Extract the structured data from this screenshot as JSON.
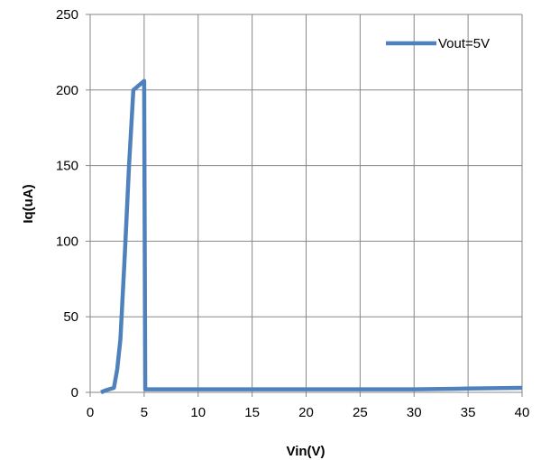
{
  "chart_data": {
    "type": "line",
    "title": "",
    "xlabel": "Vin(V)",
    "ylabel": "Iq(uA)",
    "xlim": [
      0,
      40
    ],
    "ylim": [
      0,
      250
    ],
    "xticks": [
      0,
      5,
      10,
      15,
      20,
      25,
      30,
      35,
      40
    ],
    "yticks": [
      0,
      50,
      100,
      150,
      200,
      250
    ],
    "grid": true,
    "legend_position": "top-right",
    "series": [
      {
        "name": "Vout=5V",
        "color": "#4F81BD",
        "x": [
          1.0,
          1.5,
          2.2,
          2.5,
          2.8,
          3.2,
          3.6,
          4.0,
          4.5,
          5.0,
          5.1,
          10,
          15,
          20,
          25,
          30,
          35,
          40
        ],
        "y": [
          0,
          1.5,
          3,
          15,
          35,
          90,
          150,
          200,
          203,
          206,
          2,
          2,
          2,
          2,
          2,
          2,
          2.5,
          3
        ]
      }
    ]
  }
}
